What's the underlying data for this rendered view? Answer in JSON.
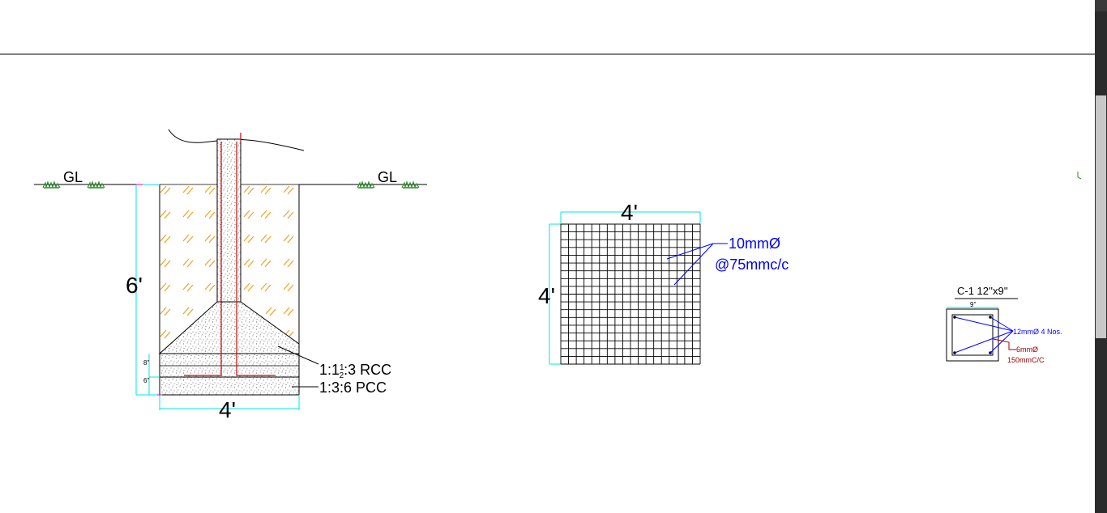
{
  "footing_section": {
    "gl_left": "GL",
    "gl_right": "GL",
    "depth": "6'",
    "width": "4'",
    "rcc_thickness": "8\"",
    "pcc_thickness": "6\"",
    "rcc_label_prefix": "1:1",
    "rcc_frac_num": "1",
    "rcc_frac_den": "2",
    "rcc_label_suffix": ":3 RCC",
    "pcc_label": "1:3:6 PCC"
  },
  "footing_plan": {
    "top_dim": "4'",
    "side_dim": "4'",
    "bar_label": "10mmØ",
    "spacing_label": "@75mmc/c"
  },
  "column_section": {
    "title": "C-1 12''x9''",
    "width_dim": "9''",
    "main_bars": "12mmØ 4 Nos.",
    "ties_dia": "6mmØ",
    "ties_spacing": "150mmC/C"
  },
  "colors": {
    "dimension": "#00e5e5",
    "rebar": "#d00000",
    "annotation_blue": "#0000ff",
    "annotation_red": "#a00000",
    "hatch": "#f0a020",
    "grass": "#2e8b2e",
    "text": "#000000"
  }
}
